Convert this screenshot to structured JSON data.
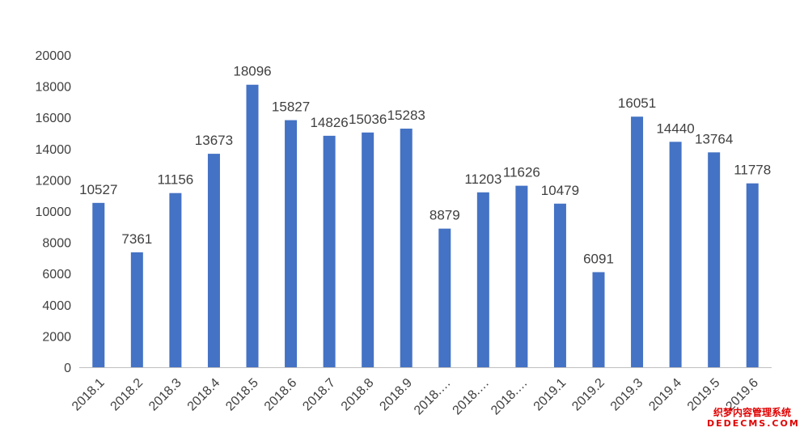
{
  "chart_data": {
    "type": "bar",
    "title": "",
    "xlabel": "",
    "ylabel": "",
    "ylim": [
      0,
      20000
    ],
    "yticks": [
      0,
      2000,
      4000,
      6000,
      8000,
      10000,
      12000,
      14000,
      16000,
      18000,
      20000
    ],
    "grid": false,
    "legend": "none",
    "bar_color": "#4472C4",
    "categories": [
      "2018.1",
      "2018.2",
      "2018.3",
      "2018.4",
      "2018.5",
      "2018.6",
      "2018.7",
      "2018.8",
      "2018.9",
      "2018.…",
      "2018.…",
      "2018.…",
      "2019.1",
      "2019.2",
      "2019.3",
      "2019.4",
      "2019.5",
      "2019.6"
    ],
    "values": [
      10527,
      7361,
      11156,
      13673,
      18096,
      15827,
      14826,
      15036,
      15283,
      8879,
      11203,
      11626,
      10479,
      6091,
      16051,
      14440,
      13764,
      11778
    ]
  },
  "watermark": {
    "line1": "织梦内容管理系统",
    "line2": "DEDECMS.COM",
    "color": "#e00000"
  }
}
